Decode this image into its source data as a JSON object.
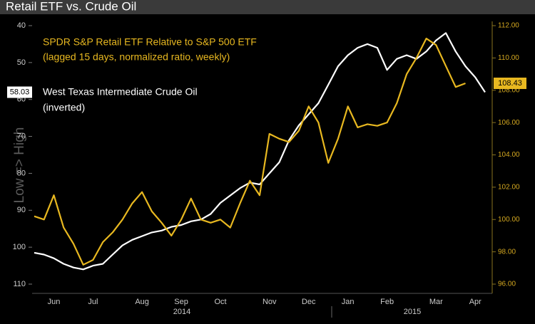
{
  "chart_data": {
    "type": "line",
    "title": "Retail ETF vs. Crude Oil",
    "y_label": "Low => High",
    "categories": [
      null,
      null,
      "Jun",
      null,
      null,
      null,
      "Jul",
      null,
      null,
      null,
      null,
      "Aug",
      null,
      null,
      null,
      "Sep",
      null,
      null,
      null,
      "Oct",
      null,
      null,
      null,
      null,
      "Nov",
      null,
      null,
      null,
      "Dec",
      null,
      null,
      null,
      "Jan",
      null,
      null,
      null,
      "Feb",
      null,
      null,
      null,
      null,
      "Mar",
      null,
      null,
      null,
      "Apr",
      null
    ],
    "years": [
      "2014",
      "2015"
    ],
    "ylim": [
      110,
      40
    ],
    "yticks": [
      40,
      50,
      60,
      70,
      80,
      90,
      100,
      110
    ],
    "y2lim": [
      96,
      112
    ],
    "y2ticks": [
      {
        "value": 96,
        "label": "96.00"
      },
      {
        "value": 98,
        "label": "98.00"
      },
      {
        "value": 100,
        "label": "100.00"
      },
      {
        "value": 102,
        "label": "102.00"
      },
      {
        "value": 104,
        "label": "104.00"
      },
      {
        "value": 106,
        "label": "106.00"
      },
      {
        "value": 108,
        "label": "108.00"
      },
      {
        "value": 110,
        "label": "110.00"
      },
      {
        "value": 112,
        "label": "112.00"
      }
    ],
    "series": [
      {
        "name": "West Texas Intermediate Crude Oil",
        "name_note": "(inverted)",
        "color": "#ffffff",
        "axis": "y",
        "values": [
          101.5,
          102,
          103,
          104.5,
          105.5,
          106,
          105,
          104.5,
          102,
          99.5,
          98,
          97,
          96,
          95.5,
          94.5,
          94,
          93,
          92.5,
          91,
          88,
          86,
          84,
          82.5,
          83,
          80,
          77,
          71,
          67,
          64,
          61,
          56,
          51,
          48,
          46,
          45,
          46,
          52,
          49,
          48,
          49,
          47,
          44,
          42,
          47,
          51,
          54,
          58.03
        ]
      },
      {
        "name": "SPDR S&P Retail ETF Relative to S&P 500 ETF",
        "name_note": "(lagged 15 days, normalized ratio, weekly)",
        "color": "#e8b820",
        "axis": "y2",
        "values": [
          100.2,
          100,
          101.5,
          99.5,
          98.5,
          97.2,
          97.5,
          98.6,
          99.2,
          100,
          101,
          101.7,
          100.5,
          99.8,
          99,
          100,
          101.3,
          100,
          99.8,
          100,
          99.5,
          101,
          102.4,
          101.5,
          105.3,
          105,
          104.8,
          105.5,
          107,
          106,
          103.5,
          105,
          107,
          105.7,
          105.9,
          105.8,
          106,
          107.2,
          109,
          110,
          111.2,
          110.8,
          109.5,
          108.2,
          108.43,
          null,
          null
        ]
      }
    ]
  }
}
